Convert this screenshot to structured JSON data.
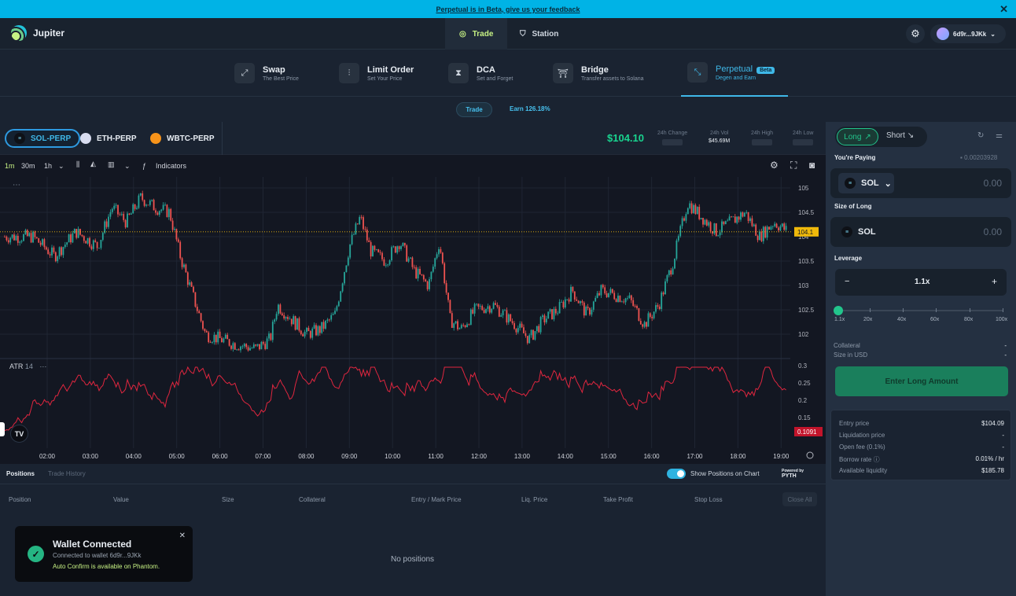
{
  "banner": {
    "text": "Perpetual is in Beta, give us your feedback",
    "close": "✕"
  },
  "header": {
    "brand": "Jupiter",
    "nav": [
      {
        "label": "Trade"
      },
      {
        "label": "Station"
      }
    ],
    "settings_icon": "gear-icon",
    "wallet": "6d9r...9JKk"
  },
  "subnav": [
    {
      "title": "Swap",
      "subtitle": "The Best Price",
      "icon": "swap-icon"
    },
    {
      "title": "Limit Order",
      "subtitle": "Set Your Price",
      "icon": "limit-icon"
    },
    {
      "title": "DCA",
      "subtitle": "Set and Forget",
      "icon": "hourglass-icon"
    },
    {
      "title": "Bridge",
      "subtitle": "Transfer assets to Solana",
      "icon": "bridge-icon"
    },
    {
      "title": "Perpetual",
      "subtitle": "Degen and Earn",
      "badge": "Beta",
      "icon": "perp-icon"
    }
  ],
  "mode": {
    "trade": "Trade",
    "earn": "Earn 126.18%"
  },
  "markets": [
    {
      "label": "SOL-PERP",
      "color": "#9945ff"
    },
    {
      "label": "ETH-PERP",
      "color": "#8a92b2"
    },
    {
      "label": "WBTC-PERP",
      "color": "#f7931a"
    }
  ],
  "stats": {
    "price": "$104.10",
    "change_label": "24h Change",
    "vol_label": "24h Vol",
    "vol_value": "$45.69M",
    "high_label": "24h High",
    "low_label": "24h Low"
  },
  "toolbar": {
    "intervals": [
      "1m",
      "30m",
      "1h"
    ],
    "indicators": "Indicators"
  },
  "chart_data": {
    "type": "candlestick",
    "y_ticks": [
      "105",
      "104.5",
      "104",
      "103.5",
      "103",
      "102.5",
      "102"
    ],
    "last_price": "104.1",
    "x_ticks": [
      "02:00",
      "03:00",
      "04:00",
      "05:00",
      "06:00",
      "07:00",
      "08:00",
      "09:00",
      "10:00",
      "11:00",
      "12:00",
      "13:00",
      "14:00",
      "15:00",
      "16:00",
      "17:00",
      "18:00",
      "19:00"
    ],
    "close_path": [
      [
        "01:40",
        104.0
      ],
      [
        "02:10",
        103.6
      ],
      [
        "02:40",
        104.1
      ],
      [
        "03:10",
        103.8
      ],
      [
        "03:30",
        104.6
      ],
      [
        "03:50",
        104.3
      ],
      [
        "04:10",
        104.8
      ],
      [
        "04:30",
        104.6
      ],
      [
        "04:50",
        104.5
      ],
      [
        "05:05",
        103.6
      ],
      [
        "05:20",
        102.9
      ],
      [
        "05:40",
        102.0
      ],
      [
        "06:20",
        101.8
      ],
      [
        "06:50",
        101.7
      ],
      [
        "07:10",
        101.9
      ],
      [
        "07:20",
        102.6
      ],
      [
        "07:40",
        102.3
      ],
      [
        "08:00",
        102.0
      ],
      [
        "08:20",
        102.1
      ],
      [
        "08:40",
        102.4
      ],
      [
        "09:00",
        103.8
      ],
      [
        "09:15",
        104.4
      ],
      [
        "09:30",
        103.7
      ],
      [
        "09:50",
        103.5
      ],
      [
        "10:10",
        103.9
      ],
      [
        "10:30",
        103.3
      ],
      [
        "10:50",
        103.0
      ],
      [
        "11:05",
        103.9
      ],
      [
        "11:20",
        102.3
      ],
      [
        "11:35",
        102.1
      ],
      [
        "11:55",
        102.5
      ],
      [
        "12:20",
        102.6
      ],
      [
        "12:50",
        102.2
      ],
      [
        "13:10",
        101.9
      ],
      [
        "13:30",
        102.3
      ],
      [
        "13:50",
        102.5
      ],
      [
        "14:10",
        102.9
      ],
      [
        "14:30",
        102.4
      ],
      [
        "14:50",
        102.9
      ],
      [
        "15:10",
        102.8
      ],
      [
        "15:30",
        102.7
      ],
      [
        "15:50",
        102.2
      ],
      [
        "16:10",
        102.6
      ],
      [
        "16:30",
        103.5
      ],
      [
        "16:50",
        104.7
      ],
      [
        "17:10",
        104.4
      ],
      [
        "17:30",
        104.1
      ],
      [
        "17:50",
        104.3
      ],
      [
        "18:10",
        104.5
      ],
      [
        "18:30",
        104.0
      ],
      [
        "18:50",
        104.3
      ],
      [
        "19:10",
        104.1
      ]
    ],
    "indicator": {
      "name": "ATR",
      "param": "14",
      "last": "0.1091",
      "ticks": [
        "0.3",
        "0.25",
        "0.2",
        "0.15"
      ]
    }
  },
  "positions": {
    "tabs": [
      "Positions",
      "Trade History"
    ],
    "show_on_chart": "Show Positions on Chart",
    "powered": "Powered by",
    "pyth": "PYTH",
    "columns": [
      "Position",
      "Value",
      "Size",
      "Collateral",
      "Entry / Mark Price",
      "Liq. Price",
      "Take Profit",
      "Stop Loss"
    ],
    "close_all": "Close All",
    "empty": "No positions"
  },
  "toast": {
    "title": "Wallet Connected",
    "line1": "Connected to wallet 6d9r...9JKk",
    "line2": "Auto Confirm is available on Phantom."
  },
  "order": {
    "long": "Long",
    "short": "Short",
    "paying_label": "You're Paying",
    "balance": "0.00203928",
    "pay_token": "SOL",
    "pay_amount": "0.00",
    "size_label": "Size of Long",
    "size_token": "SOL",
    "size_amount": "0.00",
    "leverage_label": "Leverage",
    "leverage_value": "1.1x",
    "leverage_marks": [
      "1.1x",
      "20x",
      "40x",
      "60x",
      "80x",
      "100x"
    ],
    "collateral_label": "Collateral",
    "collateral_value": "-",
    "size_usd_label": "Size in USD",
    "size_usd_value": "-",
    "cta": "Enter Long Amount",
    "entry_label": "Entry price",
    "entry_value": "$104.09",
    "liq_label": "Liquidation price",
    "liq_value": "-",
    "fee_label": "Open fee (0.1%)",
    "fee_value": "-",
    "borrow_label": "Borrow rate",
    "borrow_value": "0.01% / hr",
    "liquidity_label": "Available liquidity",
    "liquidity_value": "$185.78"
  }
}
